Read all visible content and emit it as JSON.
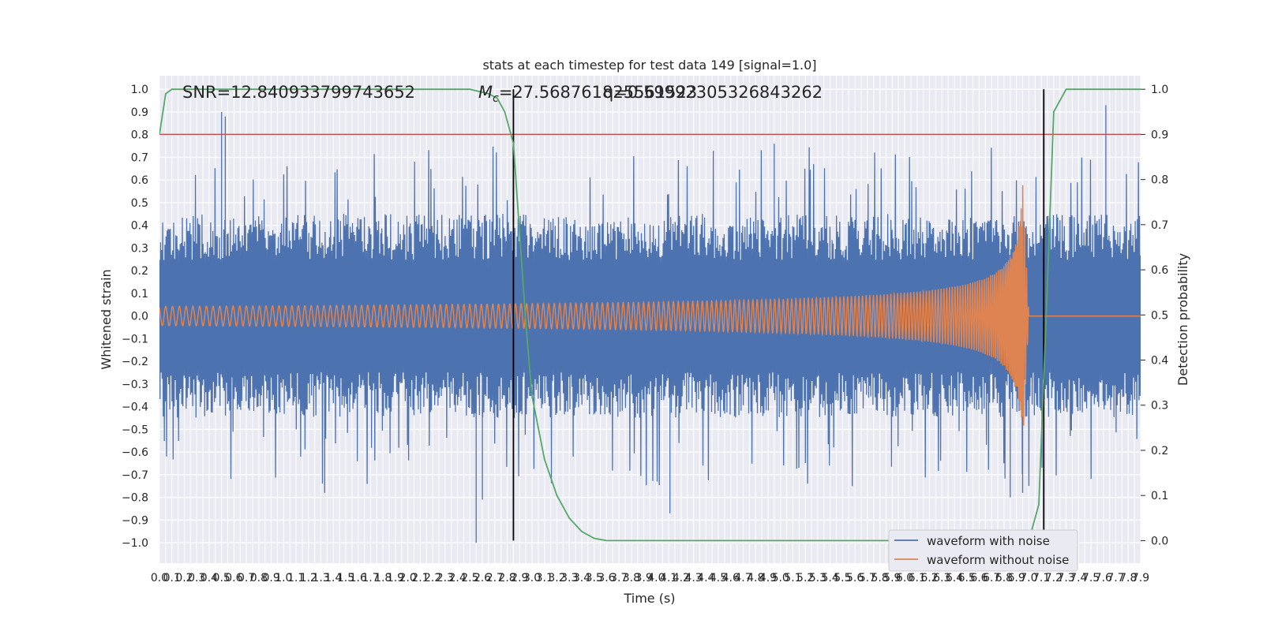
{
  "chart_data": {
    "type": "line",
    "title": "stats at each timestep for test data 149 [signal=1.0]",
    "xlabel": "Time (s)",
    "ylabel_left": "Whitened strain",
    "ylabel_right": "Detection probability",
    "xlim": [
      0.0,
      7.9
    ],
    "ylim_left": [
      -1.09,
      1.06
    ],
    "ylim_right": [
      -0.05,
      1.03
    ],
    "x_tick_step": 0.05,
    "y_ticks_left": [
      -1.0,
      -0.9,
      -0.8,
      -0.7,
      -0.6,
      -0.5,
      -0.4,
      -0.3,
      -0.2,
      -0.1,
      0.0,
      0.1,
      0.2,
      0.3,
      0.4,
      0.5,
      0.6,
      0.7,
      0.8,
      0.9,
      1.0
    ],
    "y_ticks_right": [
      0.0,
      0.1,
      0.2,
      0.3,
      0.4,
      0.5,
      0.6,
      0.7,
      0.8,
      0.9,
      1.0
    ],
    "grid": true,
    "legend_position": "lower-right",
    "annotations": {
      "snr": "SNR=12.840933799743652",
      "mc": "=27.568761825561523",
      "mc_symbol": "M",
      "mc_subscript": "c",
      "q": "q=0.59992305326843262"
    },
    "threshold_right": 0.9,
    "vertical_markers_x": [
      2.85,
      7.12
    ],
    "series": [
      {
        "name": "waveform with noise",
        "color": "#4c72b0",
        "axis": "left",
        "envelope_upper_typical": 0.45,
        "envelope_lower_typical": -0.45,
        "peaks": [
          [
            0.5,
            0.9
          ],
          [
            0.53,
            0.88
          ],
          [
            2.85,
            0.8
          ],
          [
            4.95,
            0.76
          ],
          [
            7.62,
            0.93
          ],
          [
            2.55,
            -1.0
          ],
          [
            2.6,
            -0.81
          ],
          [
            1.33,
            -0.78
          ],
          [
            4.11,
            -0.87
          ],
          [
            6.95,
            -0.78
          ],
          [
            6.85,
            -0.8
          ]
        ]
      },
      {
        "name": "waveform without noise",
        "color": "#dd8452",
        "axis": "left",
        "description": "chirp",
        "chirp_start_x": 0.0,
        "chirp_merger_x": 6.95,
        "chirp_end_x": 7.0,
        "peak_amplitude": 0.59
      },
      {
        "name": "detection probability",
        "color": "#55a868",
        "axis": "right",
        "x": [
          0.0,
          0.05,
          0.1,
          0.3,
          1.0,
          2.0,
          2.5,
          2.65,
          2.72,
          2.78,
          2.85,
          2.9,
          2.95,
          3.0,
          3.1,
          3.2,
          3.3,
          3.4,
          3.5,
          3.6,
          4.0,
          5.0,
          6.0,
          7.0,
          7.08,
          7.14,
          7.2,
          7.3,
          7.5,
          7.9
        ],
        "y": [
          0.9,
          0.99,
          1.0,
          1.0,
          1.0,
          1.0,
          1.0,
          0.99,
          0.98,
          0.95,
          0.88,
          0.68,
          0.48,
          0.32,
          0.18,
          0.1,
          0.05,
          0.02,
          0.005,
          0.0,
          0.0,
          0.0,
          0.0,
          0.0,
          0.08,
          0.5,
          0.95,
          1.0,
          1.0,
          1.0
        ]
      }
    ]
  }
}
